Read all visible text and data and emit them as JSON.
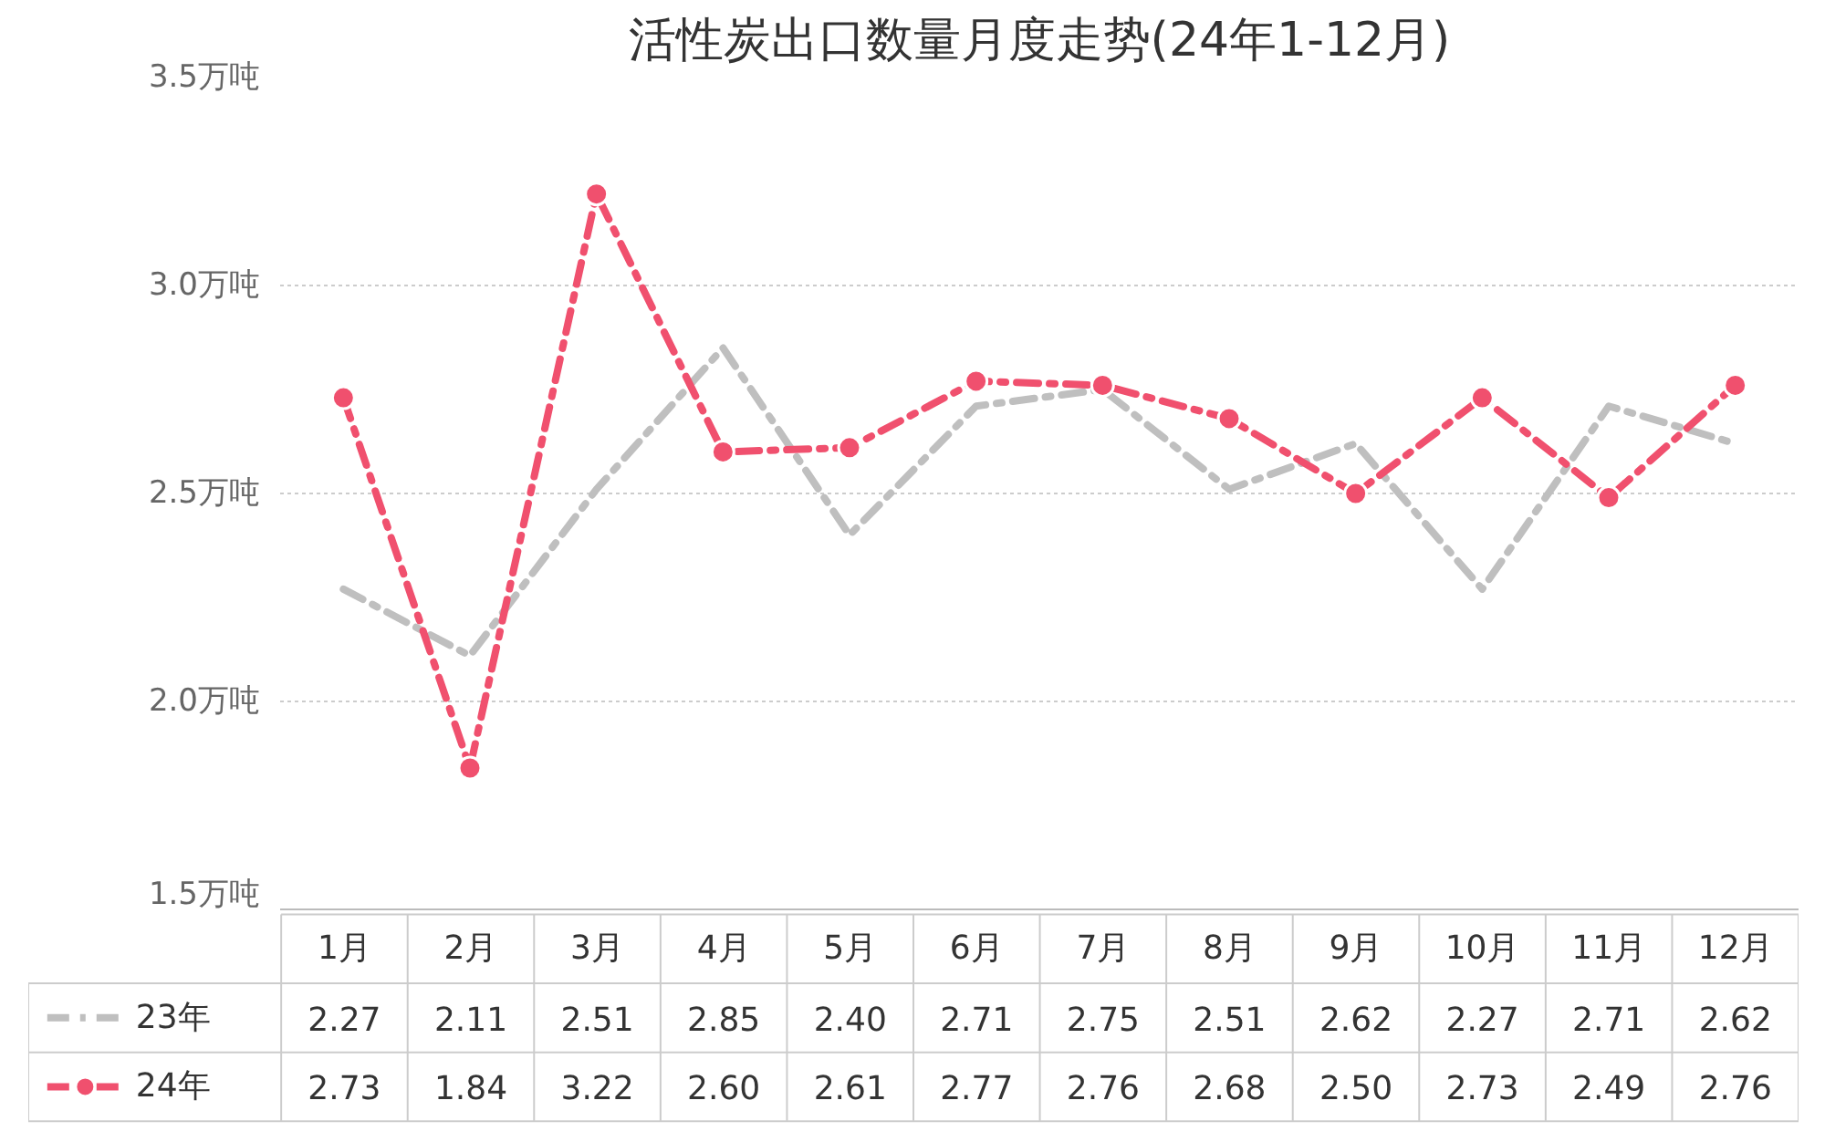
{
  "chart_data": {
    "type": "line",
    "title": "活性炭出口数量月度走势(24年1-12月)",
    "categories": [
      "1月",
      "2月",
      "3月",
      "4月",
      "5月",
      "6月",
      "7月",
      "8月",
      "9月",
      "10月",
      "11月",
      "12月"
    ],
    "series": [
      {
        "name": "23年",
        "color": "#bfbfbf",
        "marker": "none",
        "line_style": "dashed",
        "values": [
          2.27,
          2.11,
          2.51,
          2.85,
          2.4,
          2.71,
          2.75,
          2.51,
          2.62,
          2.27,
          2.71,
          2.62
        ],
        "value_labels": [
          "2.27",
          "2.11",
          "2.51",
          "2.85",
          "2.40",
          "2.71",
          "2.75",
          "2.51",
          "2.62",
          "2.27",
          "2.71",
          "2.62"
        ]
      },
      {
        "name": "24年",
        "color": "#f0506e",
        "marker": "circle",
        "line_style": "dashed",
        "values": [
          2.73,
          1.84,
          3.22,
          2.6,
          2.61,
          2.77,
          2.76,
          2.68,
          2.5,
          2.73,
          2.49,
          2.76
        ],
        "value_labels": [
          "2.73",
          "1.84",
          "3.22",
          "2.60",
          "2.61",
          "2.77",
          "2.76",
          "2.68",
          "2.50",
          "2.73",
          "2.49",
          "2.76"
        ]
      }
    ],
    "ylim": [
      1.5,
      3.5
    ],
    "yticks": [
      {
        "value": 1.5,
        "label": "1.5万吨"
      },
      {
        "value": 2.0,
        "label": "2.0万吨"
      },
      {
        "value": 2.5,
        "label": "2.5万吨"
      },
      {
        "value": 3.0,
        "label": "3.0万吨"
      },
      {
        "value": 3.5,
        "label": "3.5万吨"
      }
    ],
    "grid": "y",
    "legend": "bottom"
  }
}
